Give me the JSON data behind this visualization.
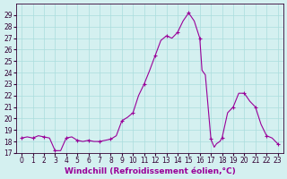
{
  "x": [
    0,
    0.5,
    1,
    1.5,
    2,
    2.5,
    3,
    3.5,
    4,
    4.5,
    5,
    5.5,
    6,
    6.5,
    7,
    7.5,
    8,
    8.5,
    9,
    9.5,
    10,
    10.5,
    11,
    11.5,
    12,
    12.5,
    13,
    13.5,
    14,
    14.5,
    15,
    15.5,
    16,
    16.2,
    16.5,
    17,
    17.3,
    17.5,
    17.8,
    18,
    18.5,
    19,
    19.5,
    20,
    20.5,
    21,
    21.5,
    22,
    22.5,
    23
  ],
  "y": [
    18.3,
    18.4,
    18.3,
    18.5,
    18.4,
    18.3,
    17.2,
    17.2,
    18.3,
    18.4,
    18.1,
    18.0,
    18.1,
    18.0,
    18.0,
    18.1,
    18.2,
    18.5,
    19.8,
    20.1,
    20.5,
    22.0,
    23.0,
    24.2,
    25.5,
    26.8,
    27.2,
    27.0,
    27.5,
    28.5,
    29.2,
    28.5,
    27.0,
    24.2,
    23.8,
    18.2,
    17.5,
    17.8,
    18.0,
    18.3,
    20.5,
    21.0,
    22.2,
    22.2,
    21.5,
    21.0,
    19.5,
    18.5,
    18.3,
    17.8
  ],
  "marker_x": [
    0,
    1,
    2,
    3,
    4,
    5,
    6,
    7,
    8,
    9,
    10,
    11,
    12,
    13,
    14,
    15,
    16,
    17,
    18,
    19,
    20,
    21,
    22,
    23
  ],
  "marker_y": [
    18.3,
    18.3,
    18.4,
    17.2,
    18.3,
    18.1,
    18.1,
    18.0,
    18.2,
    19.8,
    20.5,
    23.0,
    25.5,
    27.2,
    27.5,
    29.2,
    27.0,
    18.2,
    18.3,
    21.0,
    22.2,
    21.0,
    18.5,
    17.8
  ],
  "line_color": "#990099",
  "marker_color": "#990099",
  "bg_color": "#d4f0f0",
  "grid_color": "#aadddd",
  "xlabel": "Windchill (Refroidissement éolien,°C)",
  "xlim": [
    -0.5,
    23.5
  ],
  "ylim": [
    17,
    30
  ],
  "yticks": [
    17,
    18,
    19,
    20,
    21,
    22,
    23,
    24,
    25,
    26,
    27,
    28,
    29
  ],
  "xticks": [
    0,
    1,
    2,
    3,
    4,
    5,
    6,
    7,
    8,
    9,
    10,
    11,
    12,
    13,
    14,
    15,
    16,
    17,
    18,
    19,
    20,
    21,
    22,
    23
  ],
  "tick_fontsize": 5.5,
  "xlabel_fontsize": 6.5
}
